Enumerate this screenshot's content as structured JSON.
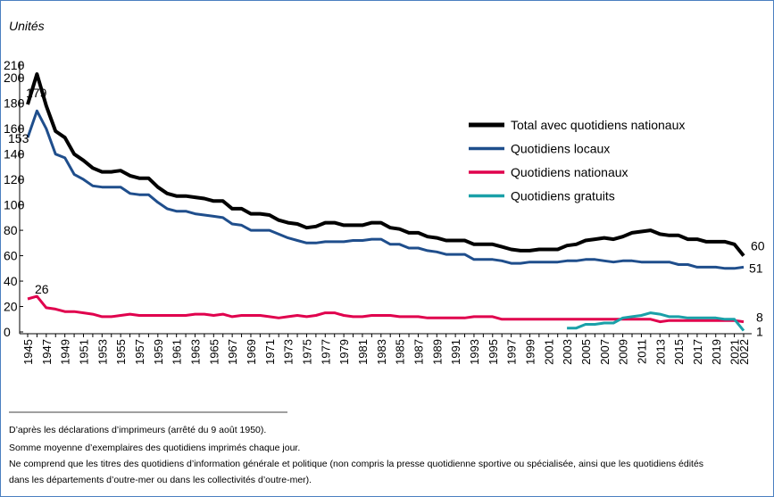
{
  "chart_data": {
    "type": "line",
    "y_unit": "Unités",
    "categories": [
      "1945",
      null,
      "1947",
      null,
      "1949",
      null,
      "1951",
      null,
      "1953",
      null,
      "1955",
      null,
      "1957",
      null,
      "1959",
      null,
      "1961",
      null,
      "1963",
      null,
      "1965",
      null,
      "1967",
      null,
      "1969",
      null,
      "1971",
      null,
      "1973",
      null,
      "1975",
      null,
      "1977",
      null,
      "1979",
      null,
      "1981",
      null,
      "1983",
      null,
      "1985",
      null,
      "1987",
      null,
      "1989",
      null,
      "1991",
      null,
      "1993",
      null,
      "1995",
      null,
      "1997",
      null,
      "1999",
      null,
      "2001",
      null,
      "2003",
      null,
      "2005",
      null,
      "2007",
      null,
      "2009",
      null,
      "2011",
      null,
      "2013",
      null,
      "2015",
      null,
      "2017",
      null,
      "2019",
      null,
      "2021",
      "2022"
    ],
    "series": [
      {
        "name": "Total avec quotidiens nationaux",
        "color": "#000000",
        "labels": "both",
        "values": [
          179,
          203,
          178,
          158,
          153,
          140,
          135,
          129,
          126,
          126,
          127,
          123,
          121,
          121,
          114,
          109,
          107,
          107,
          106,
          105,
          103,
          103,
          97,
          97,
          93,
          93,
          92,
          88,
          86,
          85,
          82,
          83,
          86,
          86,
          84,
          84,
          84,
          86,
          86,
          82,
          81,
          78,
          78,
          75,
          74,
          72,
          72,
          72,
          69,
          69,
          69,
          67,
          65,
          64,
          64,
          65,
          65,
          65,
          68,
          69,
          72,
          73,
          74,
          73,
          75,
          78,
          79,
          80,
          77,
          76,
          76,
          73,
          73,
          71,
          71,
          71,
          69,
          60
        ]
      },
      {
        "name": "Quotidiens locaux",
        "color": "#1f4e8c",
        "labels": "both",
        "values": [
          153,
          174,
          160,
          140,
          137,
          124,
          120,
          115,
          114,
          114,
          114,
          109,
          108,
          108,
          102,
          97,
          95,
          95,
          93,
          92,
          91,
          90,
          85,
          84,
          80,
          80,
          80,
          77,
          74,
          72,
          70,
          70,
          71,
          71,
          71,
          72,
          72,
          73,
          73,
          69,
          69,
          66,
          66,
          64,
          63,
          61,
          61,
          61,
          57,
          57,
          57,
          56,
          54,
          54,
          55,
          55,
          55,
          55,
          56,
          56,
          57,
          57,
          56,
          55,
          56,
          56,
          55,
          55,
          55,
          55,
          53,
          53,
          51,
          51,
          51,
          50,
          50,
          51
        ]
      },
      {
        "name": "Quotidiens nationaux",
        "color": "#e0004d",
        "labels": "both",
        "values": [
          26,
          28,
          19,
          18,
          16,
          16,
          15,
          14,
          12,
          12,
          13,
          14,
          13,
          13,
          13,
          13,
          13,
          13,
          14,
          14,
          13,
          14,
          12,
          13,
          13,
          13,
          12,
          11,
          12,
          13,
          12,
          13,
          15,
          15,
          13,
          12,
          12,
          13,
          13,
          13,
          12,
          12,
          12,
          11,
          11,
          11,
          11,
          11,
          12,
          12,
          12,
          10,
          10,
          10,
          10,
          10,
          10,
          10,
          10,
          10,
          10,
          10,
          10,
          10,
          10,
          10,
          10,
          10,
          8,
          9,
          9,
          9,
          9,
          9,
          9,
          9,
          9,
          8
        ]
      },
      {
        "name": "Quotidiens gratuits",
        "color": "#1aa0a8",
        "labels": "end",
        "values": [
          null,
          null,
          null,
          null,
          null,
          null,
          null,
          null,
          null,
          null,
          null,
          null,
          null,
          null,
          null,
          null,
          null,
          null,
          null,
          null,
          null,
          null,
          null,
          null,
          null,
          null,
          null,
          null,
          null,
          null,
          null,
          null,
          null,
          null,
          null,
          null,
          null,
          null,
          null,
          null,
          null,
          null,
          null,
          null,
          null,
          null,
          null,
          null,
          null,
          null,
          null,
          null,
          null,
          null,
          null,
          null,
          null,
          null,
          3,
          3,
          6,
          6,
          7,
          7,
          11,
          12,
          13,
          15,
          14,
          12,
          12,
          11,
          11,
          11,
          11,
          10,
          10,
          1
        ]
      }
    ],
    "ylim": [
      0,
      210
    ],
    "yticks": [
      0,
      20,
      40,
      60,
      80,
      100,
      120,
      140,
      160,
      180,
      200,
      210
    ],
    "notes": [
      "D’après les déclarations d’imprimeurs (arrêté du 9 août 1950).",
      "Somme moyenne d’exemplaires des quotidiens imprimés chaque jour.",
      "Ne comprend que les titres des quotidiens d’information générale et politique (non compris la presse quotidienne sportive ou spécialisée, ainsi que les quotidiens édités",
      "dans les départements d’outre-mer ou dans les collectivités d’outre-mer)."
    ]
  }
}
